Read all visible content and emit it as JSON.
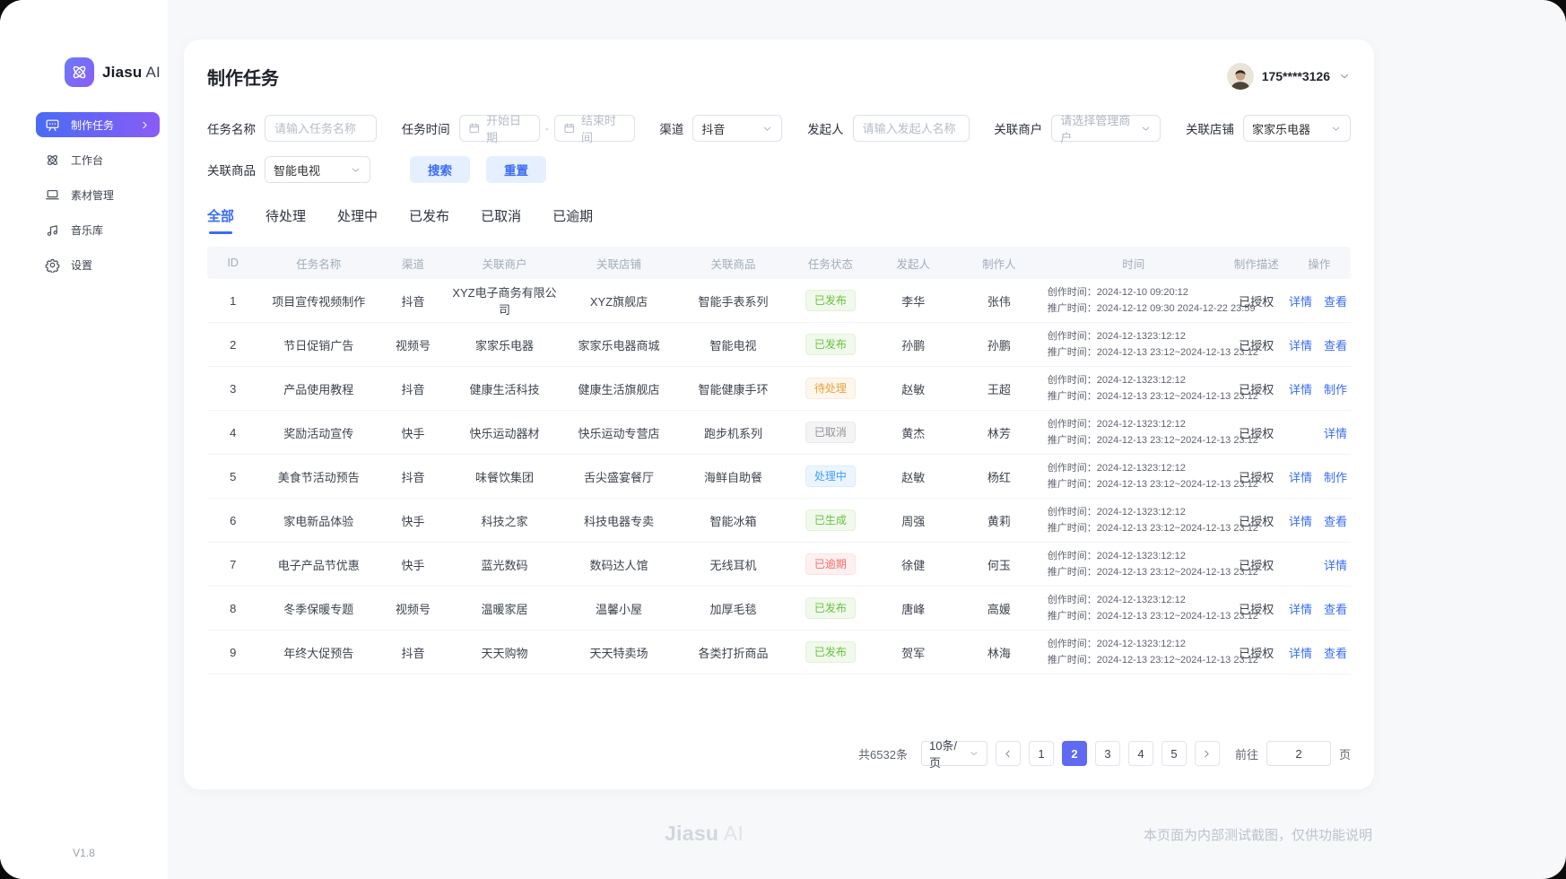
{
  "brand": {
    "bold": "Jiasu",
    "light": "AI"
  },
  "sidebar": {
    "items": [
      {
        "key": "tasks",
        "label": "制作任务",
        "icon": "presentation-icon",
        "active": true
      },
      {
        "key": "workbench",
        "label": "工作台",
        "icon": "atom-icon",
        "active": false
      },
      {
        "key": "materials",
        "label": "素材管理",
        "icon": "laptop-icon",
        "active": false
      },
      {
        "key": "music",
        "label": "音乐库",
        "icon": "music-icon",
        "active": false
      },
      {
        "key": "settings",
        "label": "设置",
        "icon": "gear-icon",
        "active": false
      }
    ],
    "version": "V1.8"
  },
  "header": {
    "title": "制作任务",
    "user": "175****3126"
  },
  "filters": {
    "task_name": {
      "label": "任务名称",
      "placeholder": "请输入任务名称"
    },
    "task_time": {
      "label": "任务时间",
      "start": "开始日期",
      "separator": "-",
      "end": "结束时间"
    },
    "channel": {
      "label": "渠道",
      "value": "抖音"
    },
    "initiator": {
      "label": "发起人",
      "placeholder": "请输入发起人名称"
    },
    "merchant": {
      "label": "关联商户",
      "placeholder": "请选择管理商户"
    },
    "store": {
      "label": "关联店铺",
      "value": "家家乐电器"
    },
    "product": {
      "label": "关联商品",
      "value": "智能电视"
    },
    "search_label": "搜索",
    "reset_label": "重置"
  },
  "tabs": [
    {
      "key": "all",
      "label": "全部",
      "active": true
    },
    {
      "key": "pending",
      "label": "待处理",
      "active": false
    },
    {
      "key": "processing",
      "label": "处理中",
      "active": false
    },
    {
      "key": "published",
      "label": "已发布",
      "active": false
    },
    {
      "key": "cancelled",
      "label": "已取消",
      "active": false
    },
    {
      "key": "overdue",
      "label": "已逾期",
      "active": false
    }
  ],
  "table": {
    "columns": [
      "ID",
      "任务名称",
      "渠道",
      "关联商户",
      "关联店铺",
      "关联商品",
      "任务状态",
      "发起人",
      "制作人",
      "时间",
      "制作描述",
      "操作"
    ],
    "rows": [
      {
        "id": "1",
        "name": "项目宣传视频制作",
        "channel": "抖音",
        "merchant": "XYZ电子商务有限公司",
        "store": "XYZ旗舰店",
        "product": "智能手表系列",
        "status": "已发布",
        "status_type": "success",
        "initiator": "李华",
        "maker": "张伟",
        "time_line1": "创作时间：2024-12-10 09:20:12",
        "time_line2": "推广时间：2024-12-12 09:30 2024-12-22 23:59",
        "desc": "已授权",
        "actions": [
          "详情",
          "查看"
        ]
      },
      {
        "id": "2",
        "name": "节日促销广告",
        "channel": "视频号",
        "merchant": "家家乐电器",
        "store": "家家乐电器商城",
        "product": "智能电视",
        "status": "已发布",
        "status_type": "success",
        "initiator": "孙鹏",
        "maker": "孙鹏",
        "time_line1": "创作时间：2024-12-1323:12:12",
        "time_line2": "推广时间：2024-12-13 23:12~2024-12-13 23:12",
        "desc": "已授权",
        "actions": [
          "详情",
          "查看"
        ]
      },
      {
        "id": "3",
        "name": "产品使用教程",
        "channel": "抖音",
        "merchant": "健康生活科技",
        "store": "健康生活旗舰店",
        "product": "智能健康手环",
        "status": "待处理",
        "status_type": "warning",
        "initiator": "赵敏",
        "maker": "王超",
        "time_line1": "创作时间：2024-12-1323:12:12",
        "time_line2": "推广时间：2024-12-13 23:12~2024-12-13 23:12",
        "desc": "已授权",
        "actions": [
          "详情",
          "制作"
        ]
      },
      {
        "id": "4",
        "name": "奖励活动宣传",
        "channel": "快手",
        "merchant": "快乐运动器材",
        "store": "快乐运动专营店",
        "product": "跑步机系列",
        "status": "已取消",
        "status_type": "info",
        "initiator": "黄杰",
        "maker": "林芳",
        "time_line1": "创作时间：2024-12-1323:12:12",
        "time_line2": "推广时间：2024-12-13 23:12~2024-12-13 23:12",
        "desc": "已授权",
        "actions": [
          "详情"
        ]
      },
      {
        "id": "5",
        "name": "美食节活动预告",
        "channel": "抖音",
        "merchant": "味餐饮集团",
        "store": "舌尖盛宴餐厅",
        "product": "海鲜自助餐",
        "status": "处理中",
        "status_type": "processing",
        "initiator": "赵敏",
        "maker": "杨红",
        "time_line1": "创作时间：2024-12-1323:12:12",
        "time_line2": "推广时间：2024-12-13 23:12~2024-12-13 23:12",
        "desc": "已授权",
        "actions": [
          "详情",
          "制作"
        ]
      },
      {
        "id": "6",
        "name": "家电新品体验",
        "channel": "快手",
        "merchant": "科技之家",
        "store": "科技电器专卖",
        "product": "智能冰箱",
        "status": "已生成",
        "status_type": "success",
        "initiator": "周强",
        "maker": "黄莉",
        "time_line1": "创作时间：2024-12-1323:12:12",
        "time_line2": "推广时间：2024-12-13 23:12~2024-12-13 23:12",
        "desc": "已授权",
        "actions": [
          "详情",
          "查看"
        ]
      },
      {
        "id": "7",
        "name": "电子产品节优惠",
        "channel": "快手",
        "merchant": "蓝光数码",
        "store": "数码达人馆",
        "product": "无线耳机",
        "status": "已逾期",
        "status_type": "danger",
        "initiator": "徐健",
        "maker": "何玉",
        "time_line1": "创作时间：2024-12-1323:12:12",
        "time_line2": "推广时间：2024-12-13 23:12~2024-12-13 23:12",
        "desc": "已授权",
        "actions": [
          "详情"
        ]
      },
      {
        "id": "8",
        "name": "冬季保暖专题",
        "channel": "视频号",
        "merchant": "温暖家居",
        "store": "温馨小屋",
        "product": "加厚毛毯",
        "status": "已发布",
        "status_type": "success",
        "initiator": "唐峰",
        "maker": "高媛",
        "time_line1": "创作时间：2024-12-1323:12:12",
        "time_line2": "推广时间：2024-12-13 23:12~2024-12-13 23:12",
        "desc": "已授权",
        "actions": [
          "详情",
          "查看"
        ]
      },
      {
        "id": "9",
        "name": "年终大促预告",
        "channel": "抖音",
        "merchant": "天天购物",
        "store": "天天特卖场",
        "product": "各类打折商品",
        "status": "已发布",
        "status_type": "success",
        "initiator": "贺军",
        "maker": "林海",
        "time_line1": "创作时间：2024-12-1323:12:12",
        "time_line2": "推广时间：2024-12-13 23:12~2024-12-13 23:12",
        "desc": "已授权",
        "actions": [
          "详情",
          "查看"
        ]
      }
    ]
  },
  "pagination": {
    "total": "共6532条",
    "page_size": "10条/页",
    "pages": [
      "1",
      "2",
      "3",
      "4",
      "5"
    ],
    "active_page": "2",
    "goto_label": "前往",
    "goto_value": "2",
    "page_label": "页"
  },
  "footer": {
    "brand_bold": "Jiasu",
    "brand_light": "AI",
    "note": "本页面为内部测试截图，仅供功能说明"
  },
  "colors": {
    "accent": "#3a6cf6",
    "sidebar_gradient_start": "#4a6bf5",
    "sidebar_gradient_end": "#8a5cf6",
    "pagination_active": "#6069f2",
    "status_success_text": "#67c23a",
    "status_success_bg": "#f0f9eb",
    "status_warning_text": "#e6a23c",
    "status_warning_bg": "#fdf6ec",
    "status_info_text": "#909399",
    "status_info_bg": "#f4f4f5",
    "status_processing_text": "#409eff",
    "status_processing_bg": "#ecf5ff",
    "status_danger_text": "#f56c6c",
    "status_danger_bg": "#fef0f0"
  }
}
